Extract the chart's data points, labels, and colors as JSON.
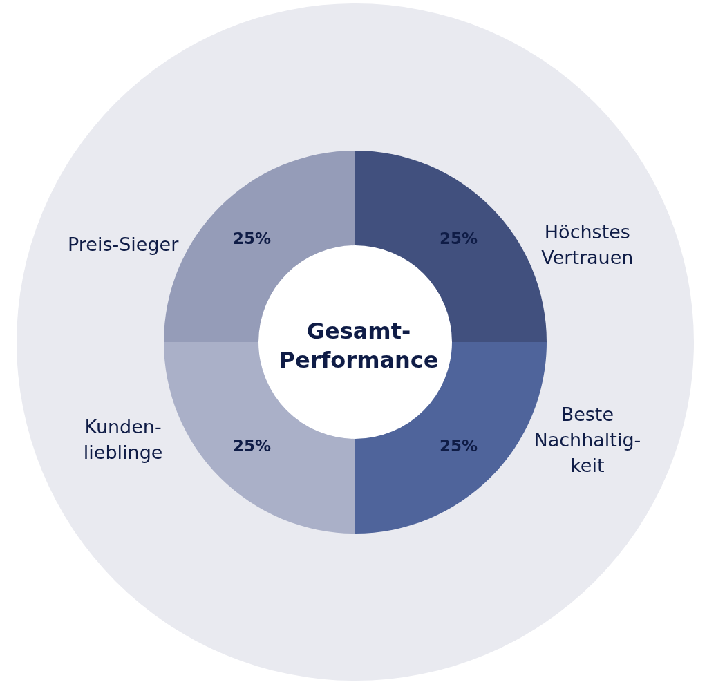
{
  "chart_data": {
    "type": "donut",
    "title": "Gesamt-\nPerformance",
    "categories": [
      "Höchstes\nVertrauen",
      "Beste\nNachhaltig-\nkeit",
      "Kunden-\nlieblinge",
      "Preis-Sieger"
    ],
    "values": [
      25,
      25,
      25,
      25
    ],
    "colors": [
      "#41507e",
      "#4f649b",
      "#aab0c8",
      "#959cb8"
    ],
    "value_labels": [
      "25%",
      "25%",
      "25%",
      "25%"
    ],
    "legend": false
  }
}
